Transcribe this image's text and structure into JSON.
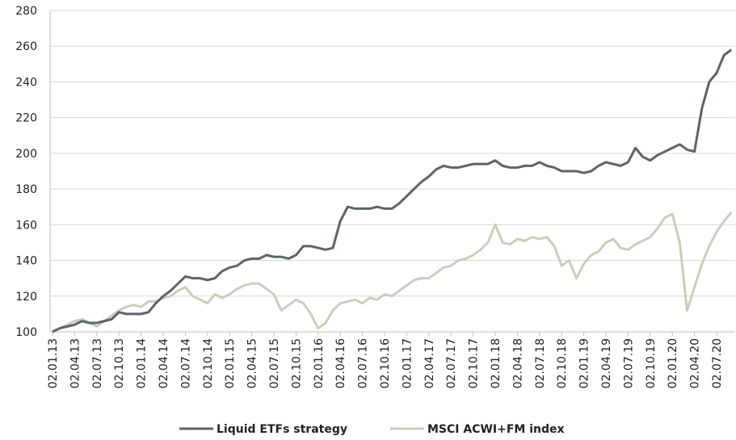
{
  "chart_data": {
    "type": "line",
    "categories": [
      "02.01.13",
      null,
      null,
      "02.04.13",
      null,
      null,
      "02.07.13",
      null,
      null,
      "02.10.13",
      null,
      null,
      "02.01.14",
      null,
      null,
      "02.04.14",
      null,
      null,
      "02.07.14",
      null,
      null,
      "02.10.14",
      null,
      null,
      "02.01.15",
      null,
      null,
      "02.04.15",
      null,
      null,
      "02.07.15",
      null,
      null,
      "02.10.15",
      null,
      null,
      "02.01.16",
      null,
      null,
      "02.04.16",
      null,
      null,
      "02.07.16",
      null,
      null,
      "02.10.16",
      null,
      null,
      "02.01.17",
      null,
      null,
      "02.04.17",
      null,
      null,
      "02.07.17",
      null,
      null,
      "02.10.17",
      null,
      null,
      "02.01.18",
      null,
      null,
      "02.04.18",
      null,
      null,
      "02.07.18",
      null,
      null,
      "02.10.18",
      null,
      null,
      "02.01.19",
      null,
      null,
      "02.04.19",
      null,
      null,
      "02.07.19",
      null,
      null,
      "02.10.19",
      null,
      null,
      "02.01.20",
      null,
      null,
      "02.04.20",
      null,
      null,
      "02.07.20",
      null,
      null
    ],
    "series": [
      {
        "name": "Liquid ETFs strategy",
        "color": "#5b6569",
        "values": [
          100,
          102,
          103,
          104,
          106,
          105,
          105,
          106,
          107,
          111,
          110,
          110,
          110,
          111,
          116,
          120,
          123,
          127,
          131,
          130,
          130,
          129,
          130,
          134,
          136,
          137,
          140,
          141,
          141,
          143,
          142,
          142,
          141,
          143,
          148,
          148,
          147,
          146,
          147,
          162,
          170,
          169,
          169,
          169,
          170,
          169,
          169,
          172,
          176,
          180,
          184,
          187,
          191,
          193,
          192,
          192,
          193,
          194,
          194,
          194,
          196,
          193,
          192,
          192,
          193,
          193,
          195,
          193,
          192,
          190,
          190,
          190,
          189,
          190,
          193,
          195,
          194,
          193,
          195,
          203,
          198,
          196,
          199,
          201,
          203,
          205,
          202,
          201,
          225,
          240,
          245,
          255,
          258
        ]
      },
      {
        "name": "MSCI ACWI+FM index",
        "color": "#cbcdb9",
        "values": [
          100,
          102,
          104,
          106,
          107,
          105,
          103,
          106,
          109,
          112,
          114,
          115,
          114,
          117,
          117,
          119,
          120,
          123,
          125,
          120,
          118,
          116,
          121,
          119,
          121,
          124,
          126,
          127,
          127,
          124,
          121,
          112,
          115,
          118,
          116,
          110,
          102,
          105,
          112,
          116,
          117,
          118,
          116,
          119,
          118,
          121,
          120,
          123,
          126,
          129,
          130,
          130,
          133,
          136,
          137,
          140,
          141,
          143,
          146,
          150,
          160,
          150,
          149,
          152,
          151,
          153,
          152,
          153,
          148,
          137,
          140,
          130,
          138,
          143,
          145,
          150,
          152,
          147,
          146,
          149,
          151,
          153,
          158,
          164,
          166,
          150,
          112,
          125,
          138,
          148,
          156,
          162,
          167
        ]
      }
    ],
    "ylim": [
      100,
      280
    ],
    "yticks": [
      100,
      120,
      140,
      160,
      180,
      200,
      220,
      240,
      260,
      280
    ],
    "grid": true,
    "legend": "bottom"
  }
}
